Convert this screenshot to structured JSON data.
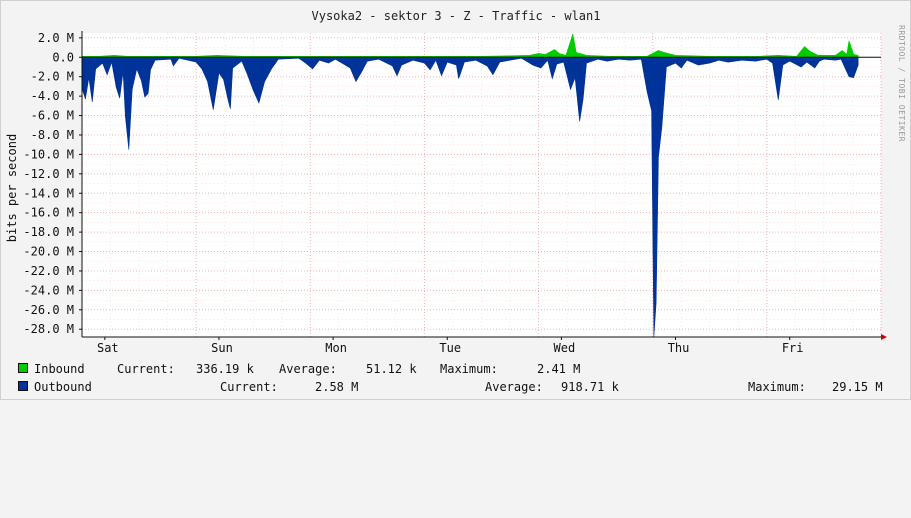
{
  "chart_data": {
    "type": "area",
    "title": "Vysoka2 - sektor 3 - Z - Traffic - wlan1",
    "ylabel": "bits per second",
    "xlabel": "",
    "ylim": [
      -28.8,
      2.5
    ],
    "y_unit": "M",
    "grid": true,
    "x_ticks": [
      "Sat",
      "Sun",
      "Mon",
      "Tue",
      "Wed",
      "Thu",
      "Fri"
    ],
    "y_ticks": [
      {
        "value": 2,
        "label": "2.0 M"
      },
      {
        "value": 0,
        "label": "0.0"
      },
      {
        "value": -2,
        "label": "-2.0 M"
      },
      {
        "value": -4,
        "label": "-4.0 M"
      },
      {
        "value": -6,
        "label": "-6.0 M"
      },
      {
        "value": -8,
        "label": "-8.0 M"
      },
      {
        "value": -10,
        "label": "-10.0 M"
      },
      {
        "value": -12,
        "label": "-12.0 M"
      },
      {
        "value": -14,
        "label": "-14.0 M"
      },
      {
        "value": -16,
        "label": "-16.0 M"
      },
      {
        "value": -18,
        "label": "-18.0 M"
      },
      {
        "value": -20,
        "label": "-20.0 M"
      },
      {
        "value": -22,
        "label": "-22.0 M"
      },
      {
        "value": -24,
        "label": "-24.0 M"
      },
      {
        "value": -26,
        "label": "-26.0 M"
      },
      {
        "value": -28,
        "label": "-28.0 M"
      }
    ],
    "series": [
      {
        "name": "Inbound",
        "color": "#00cc00",
        "points": [
          [
            0.0,
            0.1
          ],
          [
            0.15,
            0.1
          ],
          [
            0.28,
            0.2
          ],
          [
            0.4,
            0.1
          ],
          [
            0.55,
            0.1
          ],
          [
            1.0,
            0.1
          ],
          [
            1.18,
            0.2
          ],
          [
            1.42,
            0.1
          ],
          [
            1.6,
            0.1
          ],
          [
            2.0,
            0.1
          ],
          [
            2.4,
            0.1
          ],
          [
            3.0,
            0.1
          ],
          [
            3.5,
            0.1
          ],
          [
            3.92,
            0.2
          ],
          [
            4.0,
            0.4
          ],
          [
            4.06,
            0.3
          ],
          [
            4.14,
            0.8
          ],
          [
            4.18,
            0.4
          ],
          [
            4.24,
            0.2
          ],
          [
            4.3,
            2.4
          ],
          [
            4.33,
            0.5
          ],
          [
            4.42,
            0.2
          ],
          [
            4.62,
            0.1
          ],
          [
            4.95,
            0.1
          ],
          [
            5.05,
            0.7
          ],
          [
            5.1,
            0.5
          ],
          [
            5.2,
            0.2
          ],
          [
            5.5,
            0.1
          ],
          [
            5.9,
            0.1
          ],
          [
            6.1,
            0.2
          ],
          [
            6.26,
            0.1
          ],
          [
            6.33,
            1.1
          ],
          [
            6.38,
            0.6
          ],
          [
            6.45,
            0.2
          ],
          [
            6.6,
            0.2
          ],
          [
            6.66,
            0.7
          ],
          [
            6.7,
            0.3
          ],
          [
            6.72,
            1.7
          ],
          [
            6.76,
            0.3
          ],
          [
            6.8,
            0.2
          ]
        ]
      },
      {
        "name": "Outbound",
        "color": "#003399",
        "points": [
          [
            0.0,
            -3.2
          ],
          [
            0.03,
            -4.3
          ],
          [
            0.06,
            -2.1
          ],
          [
            0.09,
            -4.6
          ],
          [
            0.12,
            -1.2
          ],
          [
            0.18,
            -0.6
          ],
          [
            0.22,
            -1.8
          ],
          [
            0.26,
            -0.5
          ],
          [
            0.3,
            -3.1
          ],
          [
            0.33,
            -4.2
          ],
          [
            0.36,
            -1.5
          ],
          [
            0.38,
            -6.1
          ],
          [
            0.41,
            -9.5
          ],
          [
            0.44,
            -3.3
          ],
          [
            0.48,
            -1.2
          ],
          [
            0.52,
            -2.4
          ],
          [
            0.55,
            -4.1
          ],
          [
            0.58,
            -3.7
          ],
          [
            0.6,
            -1.3
          ],
          [
            0.64,
            -0.3
          ],
          [
            0.78,
            -0.2
          ],
          [
            0.8,
            -0.9
          ],
          [
            0.85,
            -0.1
          ],
          [
            1.0,
            -0.5
          ],
          [
            1.05,
            -1.2
          ],
          [
            1.1,
            -2.5
          ],
          [
            1.15,
            -5.4
          ],
          [
            1.2,
            -1.6
          ],
          [
            1.24,
            -2.3
          ],
          [
            1.28,
            -4.4
          ],
          [
            1.3,
            -5.3
          ],
          [
            1.32,
            -1.1
          ],
          [
            1.4,
            -0.4
          ],
          [
            1.45,
            -1.8
          ],
          [
            1.5,
            -3.4
          ],
          [
            1.55,
            -4.7
          ],
          [
            1.6,
            -2.5
          ],
          [
            1.66,
            -1.2
          ],
          [
            1.72,
            -0.2
          ],
          [
            1.9,
            -0.1
          ],
          [
            1.96,
            -0.6
          ],
          [
            2.02,
            -1.2
          ],
          [
            2.08,
            -0.3
          ],
          [
            2.16,
            -0.6
          ],
          [
            2.22,
            -0.2
          ],
          [
            2.35,
            -1.1
          ],
          [
            2.4,
            -2.5
          ],
          [
            2.45,
            -1.5
          ],
          [
            2.5,
            -0.4
          ],
          [
            2.6,
            -0.2
          ],
          [
            2.72,
            -0.9
          ],
          [
            2.76,
            -1.9
          ],
          [
            2.8,
            -0.8
          ],
          [
            2.9,
            -0.3
          ],
          [
            3.0,
            -0.6
          ],
          [
            3.05,
            -1.3
          ],
          [
            3.1,
            -0.3
          ],
          [
            3.15,
            -1.9
          ],
          [
            3.2,
            -0.5
          ],
          [
            3.28,
            -0.8
          ],
          [
            3.3,
            -2.2
          ],
          [
            3.35,
            -0.5
          ],
          [
            3.45,
            -0.3
          ],
          [
            3.55,
            -0.9
          ],
          [
            3.6,
            -1.8
          ],
          [
            3.66,
            -0.5
          ],
          [
            3.75,
            -0.3
          ],
          [
            3.85,
            -0.1
          ],
          [
            3.95,
            -0.8
          ],
          [
            4.02,
            -1.1
          ],
          [
            4.08,
            -0.3
          ],
          [
            4.12,
            -2.2
          ],
          [
            4.16,
            -0.7
          ],
          [
            4.22,
            -0.5
          ],
          [
            4.28,
            -3.3
          ],
          [
            4.32,
            -2.1
          ],
          [
            4.36,
            -6.6
          ],
          [
            4.39,
            -4.3
          ],
          [
            4.42,
            -0.6
          ],
          [
            4.52,
            -0.2
          ],
          [
            4.6,
            -0.4
          ],
          [
            4.7,
            -0.2
          ],
          [
            4.8,
            -0.3
          ],
          [
            4.9,
            -0.2
          ],
          [
            4.95,
            -3.5
          ],
          [
            4.99,
            -5.5
          ],
          [
            5.01,
            -28.8
          ],
          [
            5.03,
            -25.3
          ],
          [
            5.05,
            -10.3
          ],
          [
            5.08,
            -7.2
          ],
          [
            5.12,
            -1.0
          ],
          [
            5.2,
            -0.6
          ],
          [
            5.25,
            -1.1
          ],
          [
            5.3,
            -0.3
          ],
          [
            5.4,
            -0.8
          ],
          [
            5.5,
            -0.6
          ],
          [
            5.58,
            -0.3
          ],
          [
            5.66,
            -0.5
          ],
          [
            5.78,
            -0.3
          ],
          [
            5.9,
            -0.4
          ],
          [
            6.0,
            -0.2
          ],
          [
            6.05,
            -0.6
          ],
          [
            6.1,
            -4.4
          ],
          [
            6.14,
            -0.8
          ],
          [
            6.2,
            -0.4
          ],
          [
            6.3,
            -1.0
          ],
          [
            6.35,
            -0.5
          ],
          [
            6.42,
            -1.1
          ],
          [
            6.46,
            -0.4
          ],
          [
            6.5,
            -0.2
          ],
          [
            6.6,
            -0.3
          ],
          [
            6.65,
            -0.2
          ],
          [
            6.72,
            -2.0
          ],
          [
            6.76,
            -2.1
          ],
          [
            6.8,
            -0.8
          ]
        ]
      }
    ]
  },
  "legend": {
    "inbound": {
      "name": "Inbound",
      "color": "#00cc00",
      "current_label": "Current:",
      "current_value": "336.19 k",
      "average_label": "Average:",
      "average_value": "51.12 k",
      "maximum_label": "Maximum:",
      "maximum_value": "2.41 M"
    },
    "outbound": {
      "name": "Outbound",
      "color": "#003399",
      "current_label": "Current:",
      "current_value": "2.58 M",
      "average_label": "Average:",
      "average_value": "918.71 k",
      "maximum_label": "Maximum:",
      "maximum_value": "29.15 M"
    }
  },
  "watermark": "RRDTOOL / TOBI OETIKER"
}
